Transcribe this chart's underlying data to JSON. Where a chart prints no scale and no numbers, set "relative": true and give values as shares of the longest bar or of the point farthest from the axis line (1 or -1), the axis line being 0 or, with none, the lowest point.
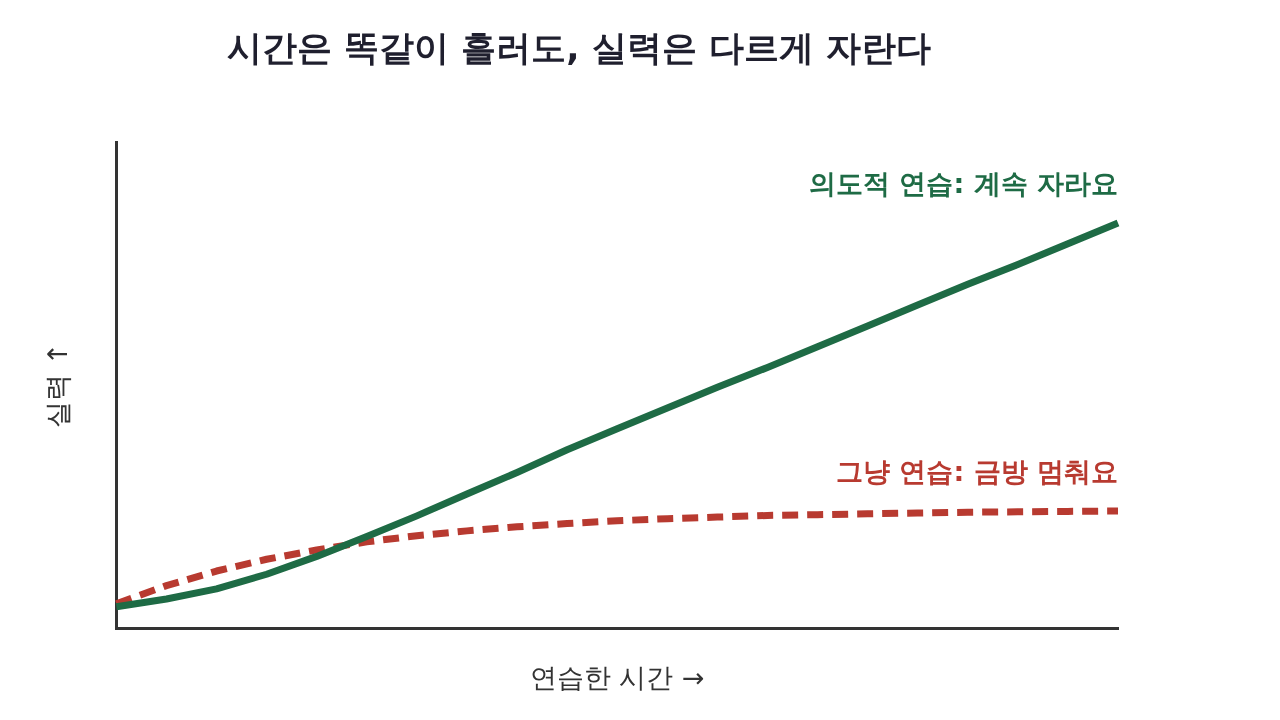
{
  "chart_data": {
    "type": "line",
    "title": "시간은 똑같이 흘러도, 실력은 다르게 자란다",
    "xlabel": "연습한 시간 →",
    "ylabel": "실력 ↑",
    "relative": true,
    "grid": false,
    "legend": false,
    "marker": "none",
    "categories": [
      null,
      null,
      null,
      null,
      null,
      null,
      null,
      null,
      null,
      null,
      null,
      null,
      null,
      null,
      null,
      null,
      null,
      null,
      null,
      null,
      null
    ],
    "series": [
      {
        "name": "의도적 연습: 계속 자라요",
        "color": "#1e6b45",
        "line_style": "solid",
        "values": [
          0.054,
          0.073,
          0.098,
          0.134,
          0.178,
          0.227,
          0.278,
          0.332,
          0.385,
          0.441,
          0.493,
          0.544,
          0.595,
          0.644,
          0.695,
          0.746,
          0.798,
          0.849,
          0.898,
          0.949,
          1
        ]
      },
      {
        "name": "그냥 연습: 금방 멈춰요",
        "color": "#b83a30",
        "line_style": "dashed",
        "values": [
          0.061,
          0.106,
          0.142,
          0.171,
          0.194,
          0.214,
          0.229,
          0.241,
          0.251,
          0.259,
          0.266,
          0.271,
          0.275,
          0.279,
          0.281,
          0.283,
          0.285,
          0.287,
          0.288,
          0.289,
          0.29
        ]
      }
    ]
  }
}
